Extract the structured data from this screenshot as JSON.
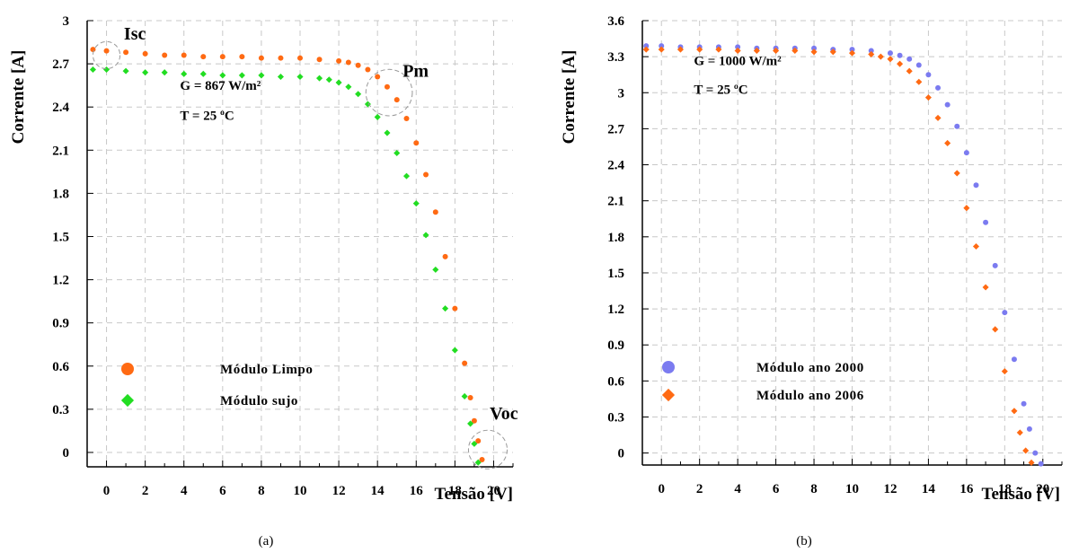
{
  "chart_data": [
    {
      "panel": "a",
      "caption": "(a)",
      "type": "scatter",
      "xlabel": "Tensão [V]",
      "ylabel": "Corrente [A]",
      "xlim": [
        -1,
        21
      ],
      "ylim": [
        -0.1,
        3
      ],
      "xticks": [
        0,
        2,
        4,
        6,
        8,
        10,
        12,
        14,
        16,
        18,
        20
      ],
      "yticks": [
        0,
        0.3,
        0.6,
        0.9,
        1.2,
        1.5,
        1.8,
        2.1,
        2.4,
        2.7,
        3
      ],
      "ytick_labels": [
        "0",
        "0.3",
        "0.6",
        "0.9",
        "1.2",
        "1.5",
        "1.8",
        "2.1",
        "2.4",
        "2.7",
        "3"
      ],
      "grid": true,
      "legend_position": "bottom-left",
      "annotations": [
        {
          "text": "G = 867 W/m²",
          "x": 3.8,
          "y": 2.52
        },
        {
          "text": "T = 25 ºC",
          "x": 3.8,
          "y": 2.31
        }
      ],
      "point_labels": [
        {
          "text": "Isc",
          "x": 0.9,
          "y": 2.87,
          "circle": {
            "x": 0,
            "y": 2.76,
            "r": 0.7
          }
        },
        {
          "text": "Pm",
          "x": 15.3,
          "y": 2.61,
          "circle": {
            "x": 14.6,
            "y": 2.5,
            "r": 1.2
          }
        },
        {
          "text": "Voc",
          "x": 19.8,
          "y": 0.23,
          "circle": {
            "x": 19.7,
            "y": 0.02,
            "r": 1.0
          }
        }
      ],
      "series": [
        {
          "name": "Módulo Limpo",
          "color": "#ff6a13",
          "marker": "circle",
          "points": [
            [
              -0.7,
              2.8
            ],
            [
              0,
              2.79
            ],
            [
              1,
              2.78
            ],
            [
              2,
              2.77
            ],
            [
              3,
              2.76
            ],
            [
              4,
              2.76
            ],
            [
              5,
              2.75
            ],
            [
              6,
              2.75
            ],
            [
              7,
              2.75
            ],
            [
              8,
              2.74
            ],
            [
              9,
              2.74
            ],
            [
              10,
              2.74
            ],
            [
              11,
              2.73
            ],
            [
              12,
              2.72
            ],
            [
              12.5,
              2.71
            ],
            [
              13,
              2.69
            ],
            [
              13.5,
              2.66
            ],
            [
              14,
              2.61
            ],
            [
              14.5,
              2.54
            ],
            [
              15,
              2.45
            ],
            [
              15.5,
              2.32
            ],
            [
              16,
              2.15
            ],
            [
              16.5,
              1.93
            ],
            [
              17,
              1.67
            ],
            [
              17.5,
              1.36
            ],
            [
              18,
              1.0
            ],
            [
              18.5,
              0.62
            ],
            [
              18.8,
              0.38
            ],
            [
              19,
              0.22
            ],
            [
              19.2,
              0.08
            ],
            [
              19.4,
              -0.05
            ]
          ]
        },
        {
          "name": "Módulo sujo",
          "color": "#22dd22",
          "marker": "diamond",
          "points": [
            [
              -0.7,
              2.66
            ],
            [
              0,
              2.66
            ],
            [
              1,
              2.65
            ],
            [
              2,
              2.64
            ],
            [
              3,
              2.64
            ],
            [
              4,
              2.63
            ],
            [
              5,
              2.63
            ],
            [
              6,
              2.62
            ],
            [
              7,
              2.62
            ],
            [
              8,
              2.62
            ],
            [
              9,
              2.61
            ],
            [
              10,
              2.61
            ],
            [
              11,
              2.6
            ],
            [
              11.5,
              2.59
            ],
            [
              12,
              2.57
            ],
            [
              12.5,
              2.54
            ],
            [
              13,
              2.49
            ],
            [
              13.5,
              2.42
            ],
            [
              14,
              2.33
            ],
            [
              14.5,
              2.22
            ],
            [
              15,
              2.08
            ],
            [
              15.5,
              1.92
            ],
            [
              16,
              1.73
            ],
            [
              16.5,
              1.51
            ],
            [
              17,
              1.27
            ],
            [
              17.5,
              1.0
            ],
            [
              18,
              0.71
            ],
            [
              18.5,
              0.39
            ],
            [
              18.8,
              0.2
            ],
            [
              19,
              0.06
            ],
            [
              19.2,
              -0.07
            ]
          ]
        }
      ]
    },
    {
      "panel": "b",
      "caption": "(b)",
      "type": "scatter",
      "xlabel": "Tensão [V]",
      "ylabel": "Corrente [A]",
      "xlim": [
        -1,
        21
      ],
      "ylim": [
        -0.1,
        3.6
      ],
      "xticks": [
        0,
        2,
        4,
        6,
        8,
        10,
        12,
        14,
        16,
        18,
        20
      ],
      "yticks": [
        0,
        0.3,
        0.6,
        0.9,
        1.2,
        1.5,
        1.8,
        2.1,
        2.4,
        2.7,
        3,
        3.3,
        3.6
      ],
      "ytick_labels": [
        "0",
        "0.3",
        "0.6",
        "0.9",
        "1.2",
        "1.5",
        "1.8",
        "2.1",
        "2.4",
        "2.7",
        "3",
        "3.3",
        "3.6"
      ],
      "grid": true,
      "legend_position": "bottom-left",
      "annotations": [
        {
          "text": "G = 1000 W/m²",
          "x": 1.7,
          "y": 3.23
        },
        {
          "text": "T = 25 ºC",
          "x": 1.7,
          "y": 2.99
        }
      ],
      "series": [
        {
          "name": "Módulo ano 2000",
          "color": "#7b7bf0",
          "marker": "circle",
          "points": [
            [
              -0.8,
              3.39
            ],
            [
              0,
              3.39
            ],
            [
              1,
              3.38
            ],
            [
              2,
              3.38
            ],
            [
              3,
              3.38
            ],
            [
              4,
              3.38
            ],
            [
              5,
              3.37
            ],
            [
              6,
              3.37
            ],
            [
              7,
              3.37
            ],
            [
              8,
              3.37
            ],
            [
              9,
              3.36
            ],
            [
              10,
              3.36
            ],
            [
              11,
              3.35
            ],
            [
              12,
              3.33
            ],
            [
              12.5,
              3.31
            ],
            [
              13,
              3.28
            ],
            [
              13.5,
              3.23
            ],
            [
              14,
              3.15
            ],
            [
              14.5,
              3.04
            ],
            [
              15,
              2.9
            ],
            [
              15.5,
              2.72
            ],
            [
              16,
              2.5
            ],
            [
              16.5,
              2.23
            ],
            [
              17,
              1.92
            ],
            [
              17.5,
              1.56
            ],
            [
              18,
              1.17
            ],
            [
              18.5,
              0.78
            ],
            [
              19,
              0.41
            ],
            [
              19.3,
              0.2
            ],
            [
              19.6,
              0.0
            ],
            [
              19.9,
              -0.09
            ]
          ]
        },
        {
          "name": "Módulo ano 2006",
          "color": "#ff6a13",
          "marker": "diamond",
          "points": [
            [
              -0.8,
              3.36
            ],
            [
              0,
              3.36
            ],
            [
              1,
              3.36
            ],
            [
              2,
              3.36
            ],
            [
              3,
              3.36
            ],
            [
              4,
              3.35
            ],
            [
              5,
              3.35
            ],
            [
              6,
              3.35
            ],
            [
              7,
              3.35
            ],
            [
              8,
              3.34
            ],
            [
              9,
              3.34
            ],
            [
              10,
              3.33
            ],
            [
              11,
              3.32
            ],
            [
              11.5,
              3.3
            ],
            [
              12,
              3.28
            ],
            [
              12.5,
              3.24
            ],
            [
              13,
              3.18
            ],
            [
              13.5,
              3.09
            ],
            [
              14,
              2.96
            ],
            [
              14.5,
              2.79
            ],
            [
              15,
              2.58
            ],
            [
              15.5,
              2.33
            ],
            [
              16,
              2.04
            ],
            [
              16.5,
              1.72
            ],
            [
              17,
              1.38
            ],
            [
              17.5,
              1.03
            ],
            [
              18,
              0.68
            ],
            [
              18.5,
              0.35
            ],
            [
              18.8,
              0.17
            ],
            [
              19.1,
              0.02
            ],
            [
              19.4,
              -0.08
            ]
          ]
        }
      ]
    }
  ]
}
